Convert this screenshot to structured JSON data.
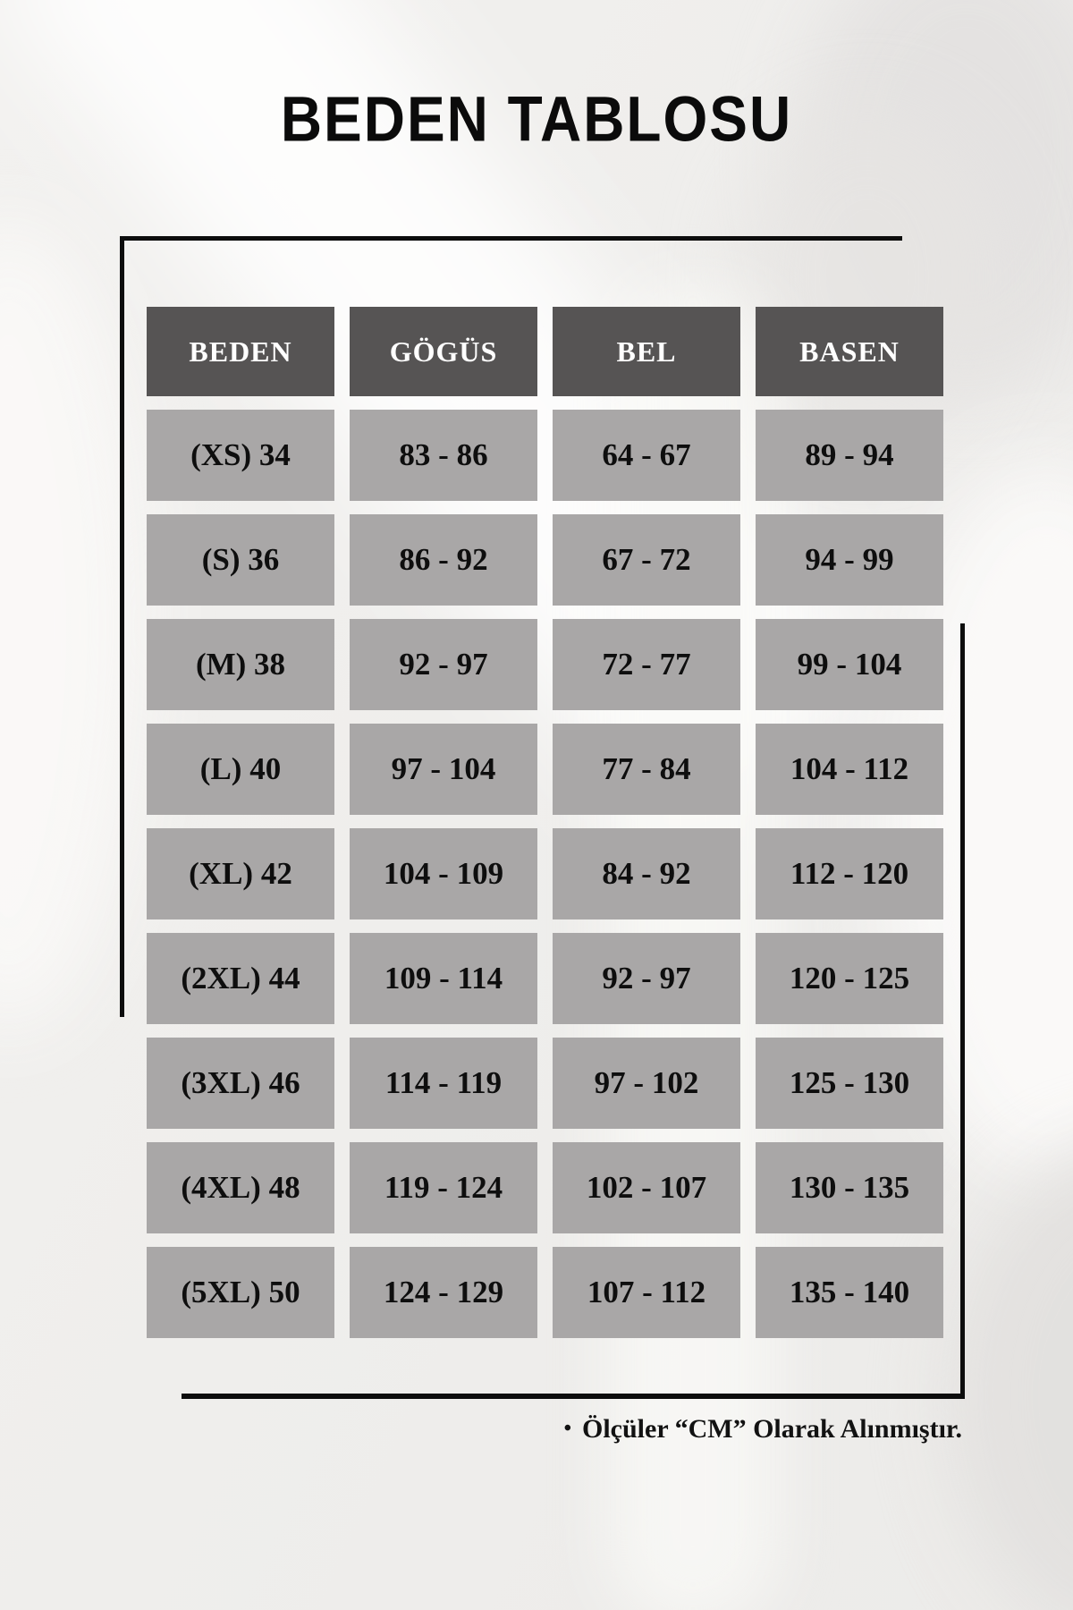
{
  "page": {
    "title": "BEDEN TABLOSU",
    "footer_bullet": "•",
    "footer_note": "Ölçüler “CM” Olarak Alınmıştır."
  },
  "chart_data": {
    "type": "table",
    "title": "BEDEN TABLOSU",
    "columns": [
      "BEDEN",
      "GÖGÜS",
      "BEL",
      "BASEN"
    ],
    "rows": [
      [
        "(XS) 34",
        "83 - 86",
        "64 - 67",
        "89 - 94"
      ],
      [
        "(S) 36",
        "86 - 92",
        "67 - 72",
        "94 - 99"
      ],
      [
        "(M) 38",
        "92 - 97",
        "72 - 77",
        "99 - 104"
      ],
      [
        "(L) 40",
        "97 - 104",
        "77 - 84",
        "104 - 112"
      ],
      [
        "(XL) 42",
        "104 - 109",
        "84 - 92",
        "112 - 120"
      ],
      [
        "(2XL) 44",
        "109 - 114",
        "92 - 97",
        "120 - 125"
      ],
      [
        "(3XL) 46",
        "114 - 119",
        "97 - 102",
        "125 - 130"
      ],
      [
        "(4XL) 48",
        "119 - 124",
        "102 - 107",
        "130 - 135"
      ],
      [
        "(5XL) 50",
        "124 - 129",
        "107 - 112",
        "135 - 140"
      ]
    ]
  },
  "colors": {
    "header_bg": "#565454",
    "cell_bg": "#a9a7a7",
    "header_text": "#ffffff",
    "cell_text": "#0e0e0e",
    "bracket_line": "#0d0d0d",
    "page_bg": "#efeeec"
  }
}
